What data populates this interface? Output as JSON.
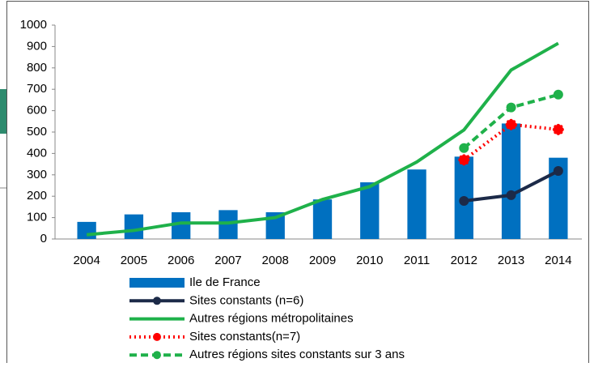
{
  "chart_data": {
    "type": "combo",
    "categories": [
      "2004",
      "2005",
      "2006",
      "2007",
      "2008",
      "2009",
      "2010",
      "2011",
      "2012",
      "2013",
      "2014"
    ],
    "ylim": [
      0,
      1000
    ],
    "yticks": [
      0,
      100,
      200,
      300,
      400,
      500,
      600,
      700,
      800,
      900,
      1000
    ],
    "series": [
      {
        "name": "Ile de France",
        "type": "bar",
        "color": "#0070c0",
        "values": [
          80,
          115,
          125,
          135,
          125,
          185,
          265,
          325,
          385,
          540,
          380
        ]
      },
      {
        "name": "Sites constants (n=6)",
        "type": "line",
        "style": "solid",
        "marker": true,
        "color": "#1c2a48",
        "values": [
          null,
          null,
          null,
          null,
          null,
          null,
          null,
          null,
          178,
          205,
          318
        ]
      },
      {
        "name": "Autres régions métropolitaines",
        "type": "line",
        "style": "solid",
        "marker": false,
        "color": "#1fb14a",
        "values": [
          20,
          40,
          75,
          75,
          100,
          185,
          245,
          360,
          510,
          790,
          915
        ]
      },
      {
        "name": "Sites constants(n=7)",
        "type": "line",
        "style": "dotted",
        "marker": true,
        "color": "#ff0000",
        "values": [
          null,
          null,
          null,
          null,
          null,
          null,
          null,
          null,
          370,
          535,
          512
        ]
      },
      {
        "name": "Autres régions sites constants sur 3 ans",
        "type": "line",
        "style": "dashed",
        "marker": true,
        "color": "#1fb14a",
        "values": [
          null,
          null,
          null,
          null,
          null,
          null,
          null,
          null,
          425,
          615,
          675
        ]
      }
    ]
  }
}
